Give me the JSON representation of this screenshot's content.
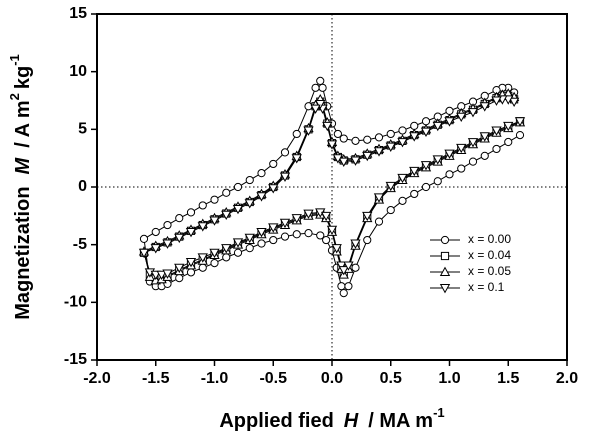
{
  "chart_data": {
    "type": "line",
    "x_label": {
      "text": "Applied fied",
      "symbol": "H",
      "unit": "/ MA m",
      "exp": "-1"
    },
    "y_label": {
      "text": "Magnetization",
      "symbol": "M",
      "unit": "/  A m",
      "exp1": "2",
      "unit2": "kg",
      "exp2": "-1"
    },
    "xlim": [
      -2,
      2
    ],
    "ylim": [
      -15,
      15
    ],
    "xticks": [
      {
        "value": -2,
        "label": "-2.0"
      },
      {
        "value": -1.5,
        "label": "-1.5"
      },
      {
        "value": -1,
        "label": "-1.0"
      },
      {
        "value": -0.5,
        "label": "-0.5"
      },
      {
        "value": 0,
        "label": "0.0"
      },
      {
        "value": 0.5,
        "label": "0.5"
      },
      {
        "value": 1,
        "label": "1.0"
      },
      {
        "value": 1.5,
        "label": "1.5"
      },
      {
        "value": 2,
        "label": "2.0"
      }
    ],
    "yticks": [
      -15,
      -10,
      -5,
      0,
      5,
      10,
      15
    ],
    "zero_lines": true,
    "legend": "center right",
    "x": [
      1.55,
      1.5,
      1.45,
      1.4,
      1.3,
      1.2,
      1.1,
      1.0,
      0.9,
      0.8,
      0.7,
      0.6,
      0.5,
      0.4,
      0.3,
      0.2,
      0.1,
      0.05,
      0,
      -0.04,
      -0.08,
      -0.1,
      -0.14,
      -0.2,
      -0.3,
      -0.4,
      -0.5,
      -0.6,
      -0.7,
      -0.8,
      -0.9,
      -1.0,
      -1.1,
      -1.2,
      -1.3,
      -1.4,
      -1.5,
      -1.6,
      -1.55,
      -1.5,
      -1.45,
      -1.4,
      -1.3,
      -1.2,
      -1.1,
      -1.0,
      -0.9,
      -0.8,
      -0.7,
      -0.6,
      -0.5,
      -0.4,
      -0.3,
      -0.2,
      -0.1,
      -0.05,
      0,
      0.04,
      0.08,
      0.1,
      0.14,
      0.2,
      0.3,
      0.4,
      0.5,
      0.6,
      0.7,
      0.8,
      0.9,
      1.0,
      1.1,
      1.2,
      1.3,
      1.4,
      1.5,
      1.6
    ],
    "series": [
      {
        "name": "x = 0.00",
        "color": "#000000",
        "marker": "circle",
        "values": [
          8.2,
          8.6,
          8.6,
          8.4,
          7.9,
          7.4,
          7.0,
          6.6,
          6.1,
          5.7,
          5.3,
          4.9,
          4.6,
          4.3,
          4.1,
          4.0,
          4.2,
          4.6,
          5.5,
          7.0,
          8.6,
          9.2,
          8.6,
          7.0,
          4.6,
          3.0,
          2.0,
          1.2,
          0.6,
          0.0,
          -0.5,
          -1.1,
          -1.6,
          -2.2,
          -2.7,
          -3.3,
          -3.9,
          -4.5,
          -8.2,
          -8.6,
          -8.6,
          -8.4,
          -7.9,
          -7.4,
          -7.0,
          -6.6,
          -6.1,
          -5.7,
          -5.3,
          -4.9,
          -4.6,
          -4.3,
          -4.1,
          -4.0,
          -4.2,
          -4.6,
          -5.5,
          -7.0,
          -8.6,
          -9.2,
          -8.6,
          -7.0,
          -4.6,
          -3.0,
          -2.0,
          -1.2,
          -0.6,
          0.0,
          0.5,
          1.1,
          1.6,
          2.2,
          2.7,
          3.3,
          3.9,
          4.5
        ]
      },
      {
        "name": "x = 0.04",
        "color": "#000000",
        "marker": "square",
        "values": [
          7.6,
          7.9,
          7.9,
          7.7,
          7.2,
          6.7,
          6.3,
          5.8,
          5.4,
          4.9,
          4.5,
          4.0,
          3.6,
          3.2,
          2.8,
          2.4,
          2.3,
          2.6,
          3.8,
          5.5,
          7.0,
          7.4,
          7.0,
          5.0,
          2.6,
          1.0,
          0.0,
          -0.7,
          -1.3,
          -1.8,
          -2.3,
          -2.8,
          -3.3,
          -3.8,
          -4.3,
          -4.8,
          -5.2,
          -5.7,
          -7.6,
          -7.9,
          -7.9,
          -7.7,
          -7.2,
          -6.7,
          -6.3,
          -5.8,
          -5.4,
          -4.9,
          -4.5,
          -4.0,
          -3.6,
          -3.2,
          -2.8,
          -2.4,
          -2.3,
          -2.6,
          -3.8,
          -5.5,
          -7.0,
          -7.4,
          -7.0,
          -5.0,
          -2.6,
          -1.0,
          0.0,
          0.7,
          1.3,
          1.8,
          2.3,
          2.8,
          3.3,
          3.8,
          4.3,
          4.8,
          5.2,
          5.7
        ]
      },
      {
        "name": "x = 0.05",
        "color": "#000000",
        "marker": "triangle-up",
        "values": [
          7.8,
          8.1,
          8.0,
          7.8,
          7.3,
          6.8,
          6.4,
          5.9,
          5.5,
          5.0,
          4.6,
          4.1,
          3.7,
          3.3,
          2.9,
          2.5,
          2.4,
          2.7,
          3.9,
          5.6,
          7.1,
          7.6,
          7.1,
          5.1,
          2.7,
          1.1,
          0.1,
          -0.6,
          -1.2,
          -1.7,
          -2.2,
          -2.7,
          -3.2,
          -3.7,
          -4.2,
          -4.7,
          -5.1,
          -5.6,
          -7.8,
          -8.1,
          -8.0,
          -7.8,
          -7.3,
          -6.8,
          -6.4,
          -5.9,
          -5.5,
          -5.0,
          -4.6,
          -4.1,
          -3.7,
          -3.3,
          -2.9,
          -2.5,
          -2.4,
          -2.7,
          -3.9,
          -5.6,
          -7.1,
          -7.6,
          -7.1,
          -5.1,
          -2.7,
          -1.1,
          -0.1,
          0.6,
          1.2,
          1.7,
          2.2,
          2.7,
          3.2,
          3.7,
          4.2,
          4.7,
          5.1,
          5.6
        ]
      },
      {
        "name": "x = 0.1",
        "color": "#000000",
        "marker": "triangle-down",
        "values": [
          7.4,
          7.6,
          7.6,
          7.5,
          7.0,
          6.5,
          6.1,
          5.7,
          5.3,
          4.8,
          4.4,
          3.9,
          3.5,
          3.1,
          2.7,
          2.3,
          2.2,
          2.5,
          3.7,
          5.3,
          6.8,
          7.2,
          6.8,
          4.9,
          2.5,
          0.9,
          -0.1,
          -0.8,
          -1.4,
          -1.9,
          -2.4,
          -2.9,
          -3.4,
          -3.9,
          -4.4,
          -4.9,
          -5.3,
          -5.7,
          -7.4,
          -7.6,
          -7.6,
          -7.5,
          -7.0,
          -6.5,
          -6.1,
          -5.7,
          -5.3,
          -4.8,
          -4.4,
          -3.9,
          -3.5,
          -3.1,
          -2.7,
          -2.3,
          -2.2,
          -2.5,
          -3.7,
          -5.3,
          -6.8,
          -7.2,
          -6.8,
          -4.9,
          -2.5,
          -0.9,
          0.1,
          0.8,
          1.4,
          1.9,
          2.4,
          2.9,
          3.4,
          3.9,
          4.4,
          4.9,
          5.3,
          5.7
        ]
      }
    ]
  }
}
